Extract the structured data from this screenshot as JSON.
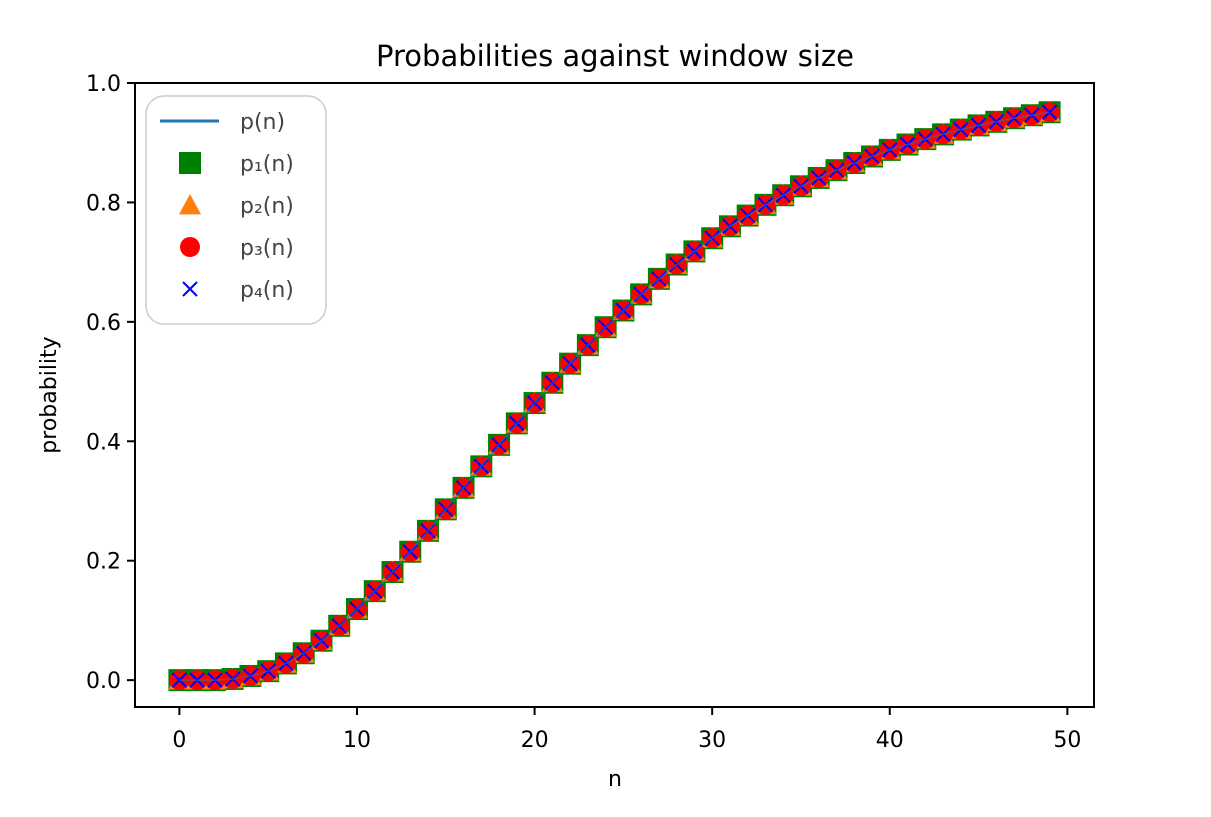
{
  "chart_data": {
    "type": "line",
    "title": "Probabilities against window size",
    "xlabel": "n",
    "ylabel": "probability",
    "xlim": [
      -2.5,
      51.5
    ],
    "ylim": [
      -0.045,
      1.0
    ],
    "xticks": [
      0,
      10,
      20,
      30,
      40,
      50
    ],
    "yticks": [
      0.0,
      0.2,
      0.4,
      0.6,
      0.8,
      1.0
    ],
    "xtick_labels": [
      "0",
      "10",
      "20",
      "30",
      "40",
      "50"
    ],
    "ytick_labels": [
      "0.0",
      "0.2",
      "0.4",
      "0.6",
      "0.8",
      "1.0"
    ],
    "grid": false,
    "legend_position": "top-left",
    "x": [
      0,
      1,
      2,
      3,
      4,
      5,
      6,
      7,
      8,
      9,
      10,
      11,
      12,
      13,
      14,
      15,
      16,
      17,
      18,
      19,
      20,
      21,
      22,
      23,
      24,
      25,
      26,
      27,
      28,
      29,
      30,
      31,
      32,
      33,
      34,
      35,
      36,
      37,
      38,
      39,
      40,
      41,
      42,
      43,
      44,
      45,
      46,
      47,
      48,
      49
    ],
    "series": [
      {
        "name": "p(n)",
        "style": "line",
        "color": "#1f77b4",
        "values": [
          0.0,
          0.0,
          0.0,
          0.002,
          0.007,
          0.015,
          0.028,
          0.045,
          0.066,
          0.091,
          0.119,
          0.149,
          0.181,
          0.215,
          0.25,
          0.286,
          0.322,
          0.358,
          0.394,
          0.43,
          0.464,
          0.498,
          0.53,
          0.561,
          0.591,
          0.619,
          0.646,
          0.672,
          0.696,
          0.718,
          0.74,
          0.76,
          0.778,
          0.796,
          0.812,
          0.827,
          0.841,
          0.854,
          0.866,
          0.877,
          0.888,
          0.897,
          0.906,
          0.914,
          0.922,
          0.929,
          0.935,
          0.941,
          0.946,
          0.951
        ]
      },
      {
        "name": "p₁(n)",
        "style": "square",
        "color": "#008000",
        "values": [
          0.0,
          0.0,
          0.0,
          0.002,
          0.007,
          0.015,
          0.028,
          0.045,
          0.066,
          0.091,
          0.119,
          0.149,
          0.181,
          0.215,
          0.25,
          0.286,
          0.322,
          0.358,
          0.394,
          0.43,
          0.464,
          0.498,
          0.53,
          0.561,
          0.591,
          0.619,
          0.646,
          0.672,
          0.696,
          0.718,
          0.74,
          0.76,
          0.778,
          0.796,
          0.812,
          0.827,
          0.841,
          0.854,
          0.866,
          0.877,
          0.888,
          0.897,
          0.906,
          0.914,
          0.922,
          0.929,
          0.935,
          0.941,
          0.946,
          0.951
        ]
      },
      {
        "name": "p₂(n)",
        "style": "triangle",
        "color": "#ff7f0e",
        "values": [
          0.0,
          0.0,
          0.0,
          0.002,
          0.007,
          0.015,
          0.028,
          0.045,
          0.066,
          0.091,
          0.119,
          0.149,
          0.181,
          0.215,
          0.25,
          0.286,
          0.322,
          0.358,
          0.394,
          0.43,
          0.464,
          0.498,
          0.53,
          0.561,
          0.591,
          0.619,
          0.646,
          0.672,
          0.696,
          0.718,
          0.74,
          0.76,
          0.778,
          0.796,
          0.812,
          0.827,
          0.841,
          0.854,
          0.866,
          0.877,
          0.888,
          0.897,
          0.906,
          0.914,
          0.922,
          0.929,
          0.935,
          0.941,
          0.946,
          0.951
        ]
      },
      {
        "name": "p₃(n)",
        "style": "circle",
        "color": "#ff0000",
        "values": [
          0.0,
          0.0,
          0.0,
          0.002,
          0.007,
          0.015,
          0.028,
          0.045,
          0.066,
          0.091,
          0.119,
          0.149,
          0.181,
          0.215,
          0.25,
          0.286,
          0.322,
          0.358,
          0.394,
          0.43,
          0.464,
          0.498,
          0.53,
          0.561,
          0.591,
          0.619,
          0.646,
          0.672,
          0.696,
          0.718,
          0.74,
          0.76,
          0.778,
          0.796,
          0.812,
          0.827,
          0.841,
          0.854,
          0.866,
          0.877,
          0.888,
          0.897,
          0.906,
          0.914,
          0.922,
          0.929,
          0.935,
          0.941,
          0.946,
          0.951
        ]
      },
      {
        "name": "p₄(n)",
        "style": "x",
        "color": "#0000ff",
        "values": [
          0.0,
          0.0,
          0.0,
          0.002,
          0.007,
          0.015,
          0.028,
          0.045,
          0.066,
          0.091,
          0.119,
          0.149,
          0.181,
          0.215,
          0.25,
          0.286,
          0.322,
          0.358,
          0.394,
          0.43,
          0.464,
          0.498,
          0.53,
          0.561,
          0.591,
          0.619,
          0.646,
          0.672,
          0.696,
          0.718,
          0.74,
          0.76,
          0.778,
          0.796,
          0.812,
          0.827,
          0.841,
          0.854,
          0.866,
          0.877,
          0.888,
          0.897,
          0.906,
          0.914,
          0.922,
          0.929,
          0.935,
          0.941,
          0.946,
          0.951
        ]
      }
    ]
  }
}
